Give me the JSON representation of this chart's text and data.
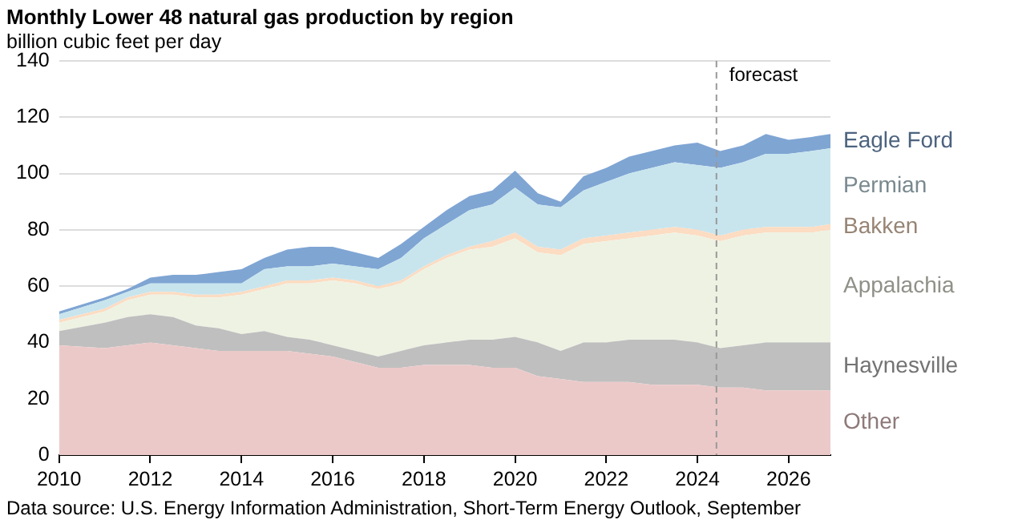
{
  "chart_data": {
    "type": "area",
    "stacked": true,
    "title": "Monthly Lower 48 natural gas production by region",
    "ylabel": "billion cubic feet per day",
    "x": [
      "2010-01",
      "2011-01",
      "2011-07",
      "2012-01",
      "2012-07",
      "2013-01",
      "2013-07",
      "2014-01",
      "2014-07",
      "2015-01",
      "2015-07",
      "2016-01",
      "2016-07",
      "2017-01",
      "2017-07",
      "2018-01",
      "2018-07",
      "2019-01",
      "2019-07",
      "2020-01",
      "2020-07",
      "2021-01",
      "2021-07",
      "2022-01",
      "2022-07",
      "2023-01",
      "2023-07",
      "2024-01",
      "2024-07",
      "2025-01",
      "2025-07",
      "2026-01",
      "2026-07",
      "2026-12"
    ],
    "series": [
      {
        "name": "Other",
        "color": "#ecc9c9",
        "values": [
          39,
          38,
          39,
          40,
          39,
          38,
          37,
          37,
          37,
          37,
          36,
          35,
          33,
          31,
          31,
          32,
          32,
          32,
          31,
          31,
          28,
          27,
          26,
          26,
          26,
          25,
          25,
          25,
          24,
          24,
          23,
          23,
          23,
          23
        ]
      },
      {
        "name": "Haynesville",
        "color": "#bfbfbf",
        "values": [
          5,
          9,
          10,
          10,
          10,
          8,
          8,
          6,
          7,
          5,
          5,
          4,
          4,
          4,
          6,
          7,
          8,
          9,
          10,
          11,
          12,
          10,
          14,
          14,
          15,
          16,
          16,
          15,
          14,
          15,
          17,
          17,
          17,
          17
        ]
      },
      {
        "name": "Appalachia",
        "color": "#eef2e3",
        "values": [
          3,
          4,
          6,
          7,
          8,
          10,
          11,
          14,
          15,
          19,
          20,
          23,
          24,
          24,
          24,
          27,
          30,
          32,
          33,
          35,
          32,
          34,
          35,
          36,
          36,
          37,
          38,
          38,
          38,
          39,
          39,
          39,
          39,
          40
        ]
      },
      {
        "name": "Bakken",
        "color": "#fcdcc2",
        "values": [
          1,
          1,
          1,
          1,
          1,
          1,
          1,
          1,
          1,
          1,
          1,
          1,
          1,
          1,
          1,
          1,
          1,
          1,
          2,
          2,
          2,
          2,
          2,
          2,
          2,
          2,
          2,
          2,
          2,
          2,
          2,
          2,
          2,
          2
        ]
      },
      {
        "name": "Permian",
        "color": "#c8e5ee",
        "values": [
          2,
          3,
          2,
          3,
          3,
          4,
          4,
          3,
          6,
          5,
          5,
          5,
          5,
          6,
          8,
          10,
          11,
          13,
          13,
          16,
          15,
          15,
          17,
          19,
          21,
          22,
          23,
          23,
          24,
          24,
          26,
          26,
          27,
          27
        ]
      },
      {
        "name": "Eagle Ford",
        "color": "#7fa5d3",
        "values": [
          1,
          1,
          1,
          2,
          3,
          3,
          4,
          5,
          4,
          6,
          7,
          6,
          5,
          4,
          5,
          4,
          5,
          5,
          5,
          6,
          4,
          2,
          5,
          5,
          6,
          6,
          6,
          8,
          6,
          6,
          7,
          5,
          5,
          5
        ]
      }
    ],
    "xlim": [
      "2010-01",
      "2026-12"
    ],
    "xticks": [
      "2010",
      "2012",
      "2014",
      "2016",
      "2018",
      "2020",
      "2022",
      "2024",
      "2026"
    ],
    "ylim": [
      0,
      140
    ],
    "yticks": [
      0,
      20,
      40,
      60,
      80,
      100,
      120,
      140
    ],
    "grid": "y",
    "legend": false,
    "ref_lines": [
      {
        "axis": "x",
        "value": "2024-06",
        "label": "forecast",
        "line_style": "dashed",
        "color": "#999999"
      }
    ],
    "annotations": [
      "Data source: U.S. Energy Information Administration, Short-Term Energy Outlook, September"
    ]
  }
}
